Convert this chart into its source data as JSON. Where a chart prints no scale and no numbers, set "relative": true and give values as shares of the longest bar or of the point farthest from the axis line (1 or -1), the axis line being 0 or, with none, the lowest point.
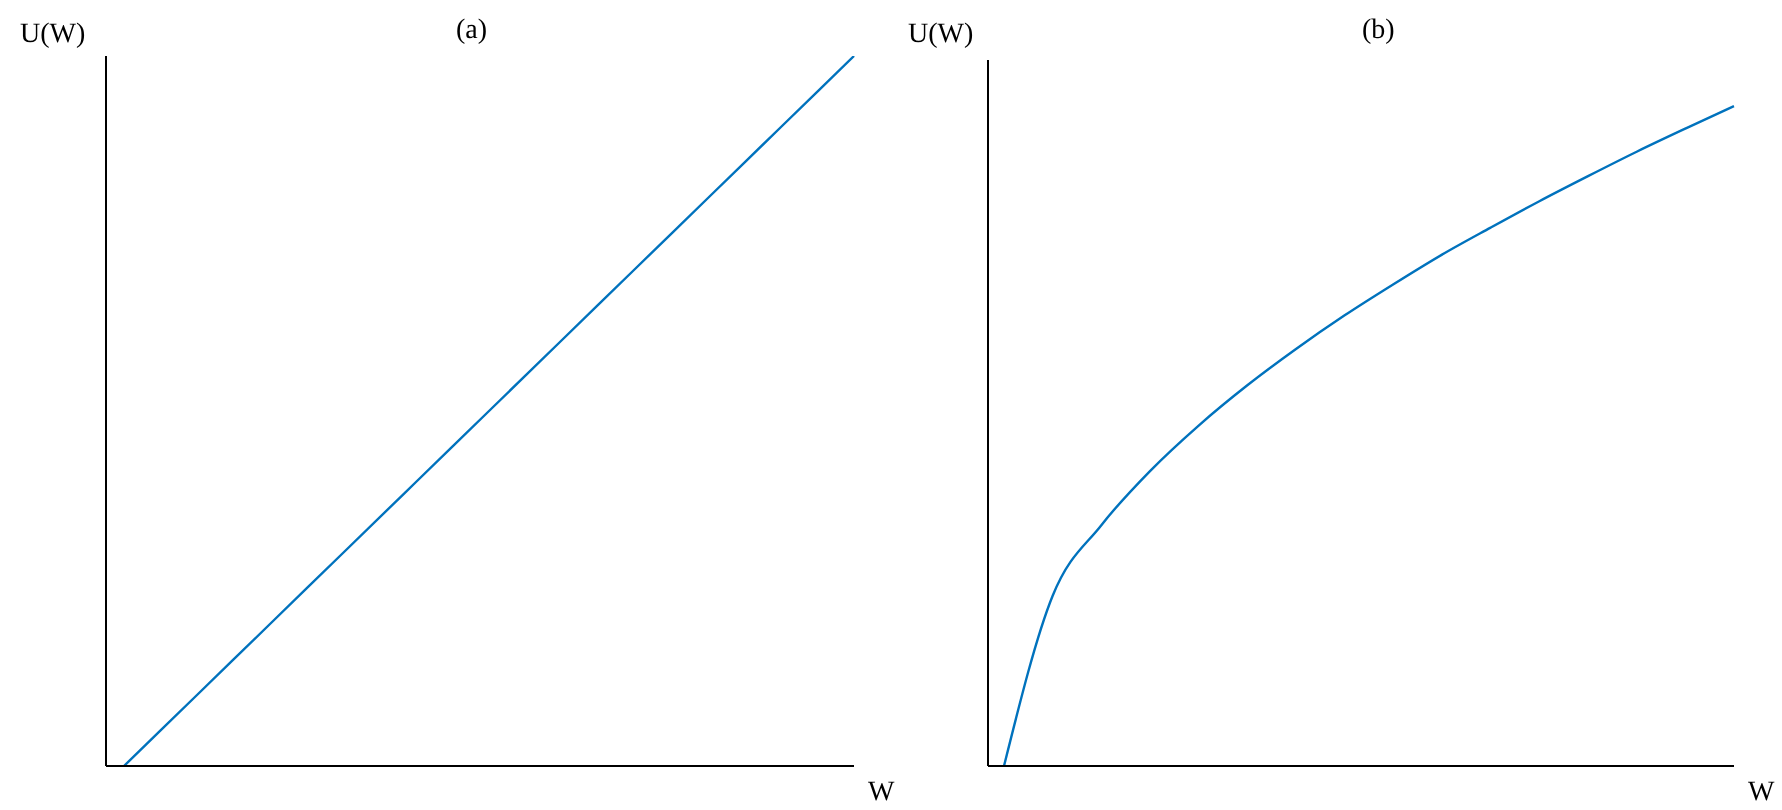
{
  "chart_data": [
    {
      "type": "line",
      "title": "(a)",
      "ylabel": "U(W)",
      "xlabel": "W",
      "relative": true,
      "color": "#0072bd",
      "categories": [
        null,
        null,
        null,
        null,
        null,
        null,
        null,
        null,
        null,
        null,
        null
      ],
      "values": [
        0,
        0.1,
        0.2,
        0.3,
        0.4,
        0.5,
        0.6,
        0.7,
        0.8,
        0.9,
        1
      ]
    },
    {
      "type": "line",
      "title": "(b)",
      "ylabel": "U(W)",
      "xlabel": "W",
      "relative": true,
      "color": "#0072bd",
      "categories": [
        null,
        null,
        null,
        null,
        null,
        null,
        null,
        null,
        null,
        null,
        null,
        null,
        null,
        null,
        null,
        null
      ],
      "values": [
        0,
        0.258,
        0.365,
        0.447,
        0.516,
        0.577,
        0.632,
        0.683,
        0.73,
        0.775,
        0.816,
        0.856,
        0.894,
        0.931,
        0.966,
        1
      ]
    }
  ]
}
